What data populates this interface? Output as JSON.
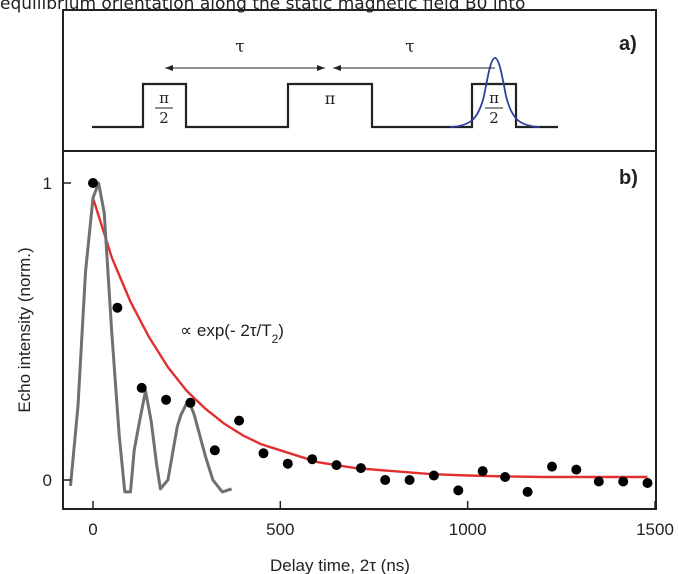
{
  "caption": "equilibrium orientation along the static magnetic field B0 into",
  "panel_a": {
    "label": "a)",
    "tau_left": "τ",
    "tau_right": "τ",
    "pulse1_num": "π",
    "pulse1_den": "2",
    "pulse2": "π",
    "pulse3_num": "π",
    "pulse3_den": "2"
  },
  "panel_b": {
    "label": "b)",
    "annotation": "∝ exp(- 2τ/T2)",
    "annotation_color": "#e03030"
  },
  "chart_data": {
    "type": "scatter",
    "xlabel": "Delay time, 2τ (ns)",
    "ylabel": "Echo intensity (norm.)",
    "xlim": [
      -80,
      1500
    ],
    "ylim": [
      -0.1,
      1.1
    ],
    "x_ticks": [
      "0",
      "500",
      "1000",
      "1500"
    ],
    "y_ticks": [
      "0",
      "1"
    ],
    "grid": false,
    "series": [
      {
        "type": "scatter",
        "color": "#000000",
        "x": [
          0,
          65,
          130,
          195,
          260,
          325,
          390,
          455,
          520,
          585,
          650,
          715,
          780,
          845,
          910,
          975,
          1040,
          1100,
          1160,
          1225,
          1290,
          1350,
          1415,
          1480
        ],
        "y": [
          1.0,
          0.58,
          0.31,
          0.27,
          0.26,
          0.1,
          0.2,
          0.09,
          0.055,
          0.07,
          0.05,
          0.04,
          0.0,
          0.0,
          0.015,
          -0.035,
          0.03,
          0.01,
          -0.04,
          0.045,
          0.035,
          -0.005,
          -0.005,
          -0.01
        ]
      },
      {
        "type": "line",
        "color": "#e03030",
        "x": [
          0,
          50,
          100,
          150,
          200,
          250,
          300,
          350,
          400,
          450,
          500,
          600,
          700,
          800,
          900,
          1000,
          1100,
          1200,
          1300,
          1400,
          1480
        ],
        "y": [
          0.95,
          0.75,
          0.6,
          0.48,
          0.38,
          0.3,
          0.24,
          0.19,
          0.15,
          0.12,
          0.1,
          0.06,
          0.04,
          0.03,
          0.02,
          0.015,
          0.012,
          0.01,
          0.01,
          0.01,
          0.01
        ]
      },
      {
        "type": "line",
        "color": "#707070",
        "x": [
          -60,
          -40,
          -20,
          0,
          15,
          30,
          50,
          70,
          85,
          100,
          110,
          120,
          140,
          155,
          170,
          180,
          200,
          225,
          235,
          255,
          270,
          285,
          300,
          320,
          345,
          370
        ],
        "y": [
          -0.02,
          0.25,
          0.7,
          0.95,
          1.0,
          0.9,
          0.5,
          0.15,
          -0.04,
          -0.04,
          0.1,
          0.17,
          0.3,
          0.2,
          0.05,
          -0.03,
          0.0,
          0.18,
          0.22,
          0.27,
          0.22,
          0.15,
          0.08,
          0.0,
          -0.04,
          -0.03
        ]
      }
    ]
  }
}
